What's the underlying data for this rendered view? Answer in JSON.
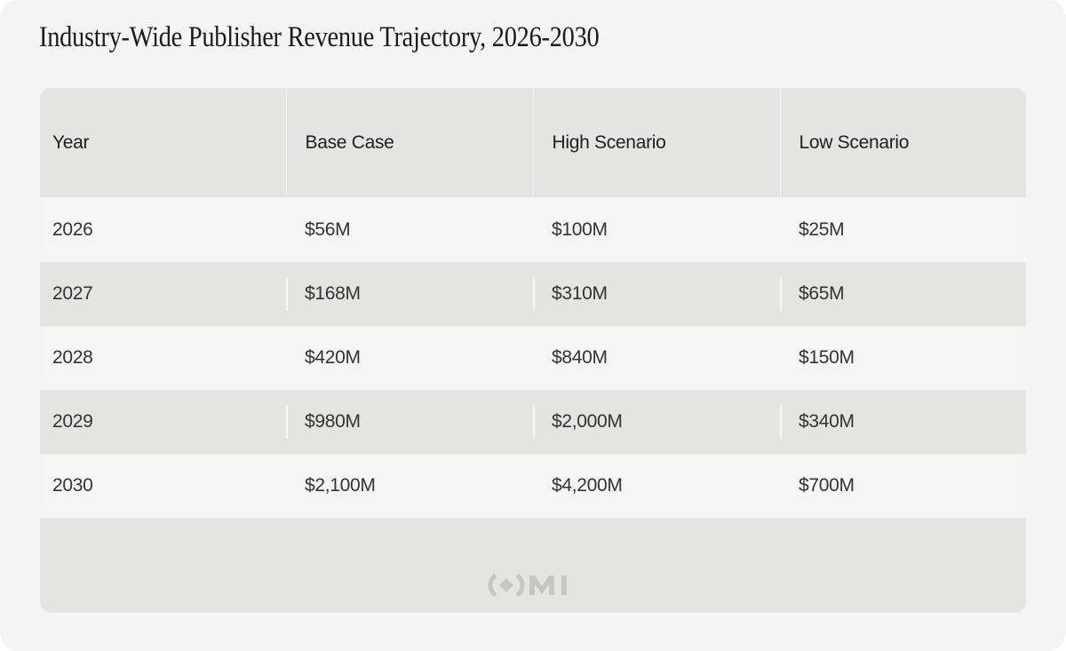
{
  "title": "Industry-Wide Publisher Revenue Trajectory, 2026-2030",
  "chart_data": {
    "type": "table",
    "title": "Industry-Wide Publisher Revenue Trajectory, 2026-2030",
    "columns": [
      "Year",
      "Base Case",
      "High Scenario",
      "Low Scenario"
    ],
    "rows": [
      [
        "2026",
        "$56M",
        "$100M",
        "$25M"
      ],
      [
        "2027",
        "$168M",
        "$310M",
        "$65M"
      ],
      [
        "2028",
        "$420M",
        "$840M",
        "$150M"
      ],
      [
        "2029",
        "$980M",
        "$2,000M",
        "$340M"
      ],
      [
        "2030",
        "$2,100M",
        "$4,200M",
        "$700M"
      ]
    ]
  },
  "watermark": {
    "text": "OMI",
    "icon": "omi-logo"
  },
  "colors": {
    "background": "#f4f4f4",
    "header_fill": "#e6e4e1",
    "row_light": "#f5f5f4",
    "row_dark": "#e6e4e1",
    "watermark": "#c8c6c3"
  }
}
